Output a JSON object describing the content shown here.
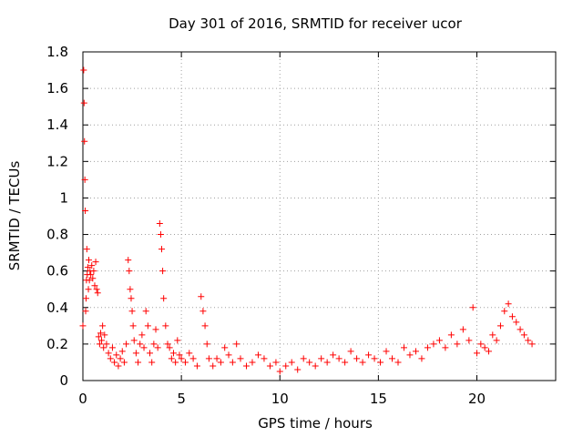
{
  "chart_data": {
    "type": "scatter",
    "title": "Day 301 of 2016, SRMTID for receiver ucor",
    "xlabel": "GPS time / hours",
    "ylabel": "SRMTID / TECUs",
    "xlim": [
      0,
      24
    ],
    "ylim": [
      0,
      1.8
    ],
    "xticks": [
      0,
      5,
      10,
      15,
      20
    ],
    "yticks": [
      0,
      0.2,
      0.4,
      0.6,
      0.8,
      1,
      1.2,
      1.4,
      1.6,
      1.8
    ],
    "xtick_labels": [
      "0",
      "5",
      "10",
      "15",
      "20"
    ],
    "ytick_labels": [
      "0",
      "0.2",
      "0.4",
      "0.6",
      "0.8",
      "1",
      "1.2",
      "1.4",
      "1.6",
      "1.8"
    ],
    "grid": true,
    "marker": "+",
    "marker_color": "#ff0000",
    "series": [
      {
        "x": [
          0.0,
          0.04,
          0.06,
          0.08,
          0.1,
          0.12,
          0.14,
          0.16,
          0.18,
          0.2,
          0.22,
          0.25,
          0.28,
          0.3,
          0.33,
          0.36,
          0.4,
          0.45,
          0.5,
          0.55,
          0.6,
          0.65,
          0.7,
          0.75,
          0.8,
          0.85,
          0.9,
          0.95,
          1.0,
          1.05,
          1.1,
          1.2,
          1.3,
          1.4,
          1.5,
          1.6,
          1.7,
          1.8,
          1.9,
          2.0,
          2.1,
          2.2,
          2.3,
          2.35,
          2.4,
          2.45,
          2.5,
          2.55,
          2.6,
          2.7,
          2.8,
          2.9,
          3.0,
          3.1,
          3.2,
          3.3,
          3.4,
          3.5,
          3.6,
          3.7,
          3.8,
          3.9,
          3.95,
          4.0,
          4.05,
          4.1,
          4.2,
          4.3,
          4.4,
          4.5,
          4.6,
          4.7,
          4.8,
          4.9,
          5.0,
          5.2,
          5.4,
          5.6,
          5.8,
          6.0,
          6.1,
          6.2,
          6.3,
          6.4,
          6.6,
          6.8,
          7.0,
          7.2,
          7.4,
          7.6,
          7.8,
          8.0,
          8.3,
          8.6,
          8.9,
          9.2,
          9.5,
          9.8,
          10.0,
          10.3,
          10.6,
          10.9,
          11.2,
          11.5,
          11.8,
          12.1,
          12.4,
          12.7,
          13.0,
          13.3,
          13.6,
          13.9,
          14.2,
          14.5,
          14.8,
          15.1,
          15.4,
          15.7,
          16.0,
          16.3,
          16.6,
          16.9,
          17.2,
          17.5,
          17.8,
          18.1,
          18.4,
          18.7,
          19.0,
          19.3,
          19.6,
          19.8,
          20.0,
          20.2,
          20.4,
          20.6,
          20.8,
          21.0,
          21.2,
          21.4,
          21.6,
          21.8,
          22.0,
          22.2,
          22.4,
          22.6,
          22.8
        ],
        "y": [
          0.3,
          1.7,
          1.52,
          1.31,
          1.1,
          0.93,
          0.38,
          0.45,
          0.55,
          0.72,
          0.58,
          0.62,
          0.5,
          0.66,
          0.55,
          0.6,
          0.58,
          0.63,
          0.56,
          0.6,
          0.52,
          0.65,
          0.5,
          0.48,
          0.24,
          0.2,
          0.26,
          0.22,
          0.3,
          0.18,
          0.25,
          0.2,
          0.15,
          0.12,
          0.18,
          0.1,
          0.14,
          0.08,
          0.12,
          0.16,
          0.1,
          0.2,
          0.66,
          0.6,
          0.5,
          0.45,
          0.38,
          0.3,
          0.22,
          0.15,
          0.1,
          0.2,
          0.25,
          0.18,
          0.38,
          0.3,
          0.15,
          0.1,
          0.2,
          0.28,
          0.18,
          0.86,
          0.8,
          0.72,
          0.6,
          0.45,
          0.3,
          0.2,
          0.18,
          0.12,
          0.15,
          0.1,
          0.22,
          0.14,
          0.12,
          0.1,
          0.15,
          0.12,
          0.08,
          0.46,
          0.38,
          0.3,
          0.2,
          0.12,
          0.08,
          0.12,
          0.1,
          0.18,
          0.14,
          0.1,
          0.2,
          0.12,
          0.08,
          0.1,
          0.14,
          0.12,
          0.08,
          0.1,
          0.05,
          0.08,
          0.1,
          0.06,
          0.12,
          0.1,
          0.08,
          0.12,
          0.1,
          0.14,
          0.12,
          0.1,
          0.16,
          0.12,
          0.1,
          0.14,
          0.12,
          0.1,
          0.16,
          0.12,
          0.1,
          0.18,
          0.14,
          0.16,
          0.12,
          0.18,
          0.2,
          0.22,
          0.18,
          0.25,
          0.2,
          0.28,
          0.22,
          0.4,
          0.15,
          0.2,
          0.18,
          0.16,
          0.25,
          0.22,
          0.3,
          0.38,
          0.42,
          0.35,
          0.32,
          0.28,
          0.25,
          0.22,
          0.2
        ]
      }
    ]
  }
}
